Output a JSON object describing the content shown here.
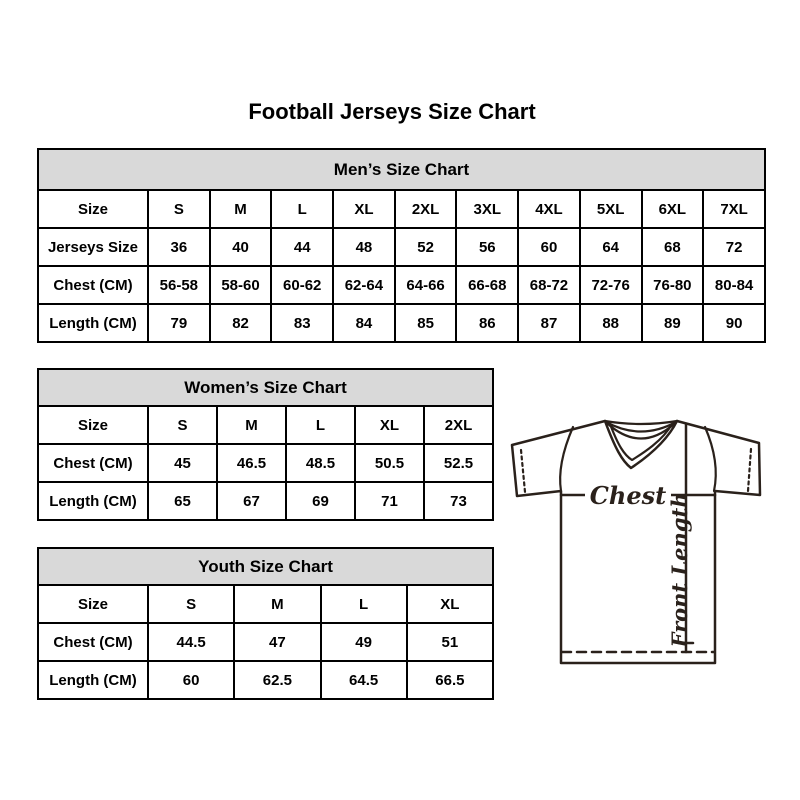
{
  "title": "Football Jerseys Size Chart",
  "tables": {
    "men": {
      "header": "Men’s Size Chart",
      "rows": [
        {
          "label": "Size",
          "values": [
            "S",
            "M",
            "L",
            "XL",
            "2XL",
            "3XL",
            "4XL",
            "5XL",
            "6XL",
            "7XL"
          ]
        },
        {
          "label": "Jerseys Size",
          "values": [
            "36",
            "40",
            "44",
            "48",
            "52",
            "56",
            "60",
            "64",
            "68",
            "72"
          ]
        },
        {
          "label": "Chest (CM)",
          "values": [
            "56-58",
            "58-60",
            "60-62",
            "62-64",
            "64-66",
            "66-68",
            "68-72",
            "72-76",
            "76-80",
            "80-84"
          ]
        },
        {
          "label": "Length (CM)",
          "values": [
            "79",
            "82",
            "83",
            "84",
            "85",
            "86",
            "87",
            "88",
            "89",
            "90"
          ]
        }
      ]
    },
    "women": {
      "header": "Women’s Size Chart",
      "rows": [
        {
          "label": "Size",
          "values": [
            "S",
            "M",
            "L",
            "XL",
            "2XL"
          ]
        },
        {
          "label": "Chest (CM)",
          "values": [
            "45",
            "46.5",
            "48.5",
            "50.5",
            "52.5"
          ]
        },
        {
          "label": "Length (CM)",
          "values": [
            "65",
            "67",
            "69",
            "71",
            "73"
          ]
        }
      ]
    },
    "youth": {
      "header": "Youth Size Chart",
      "rows": [
        {
          "label": "Size",
          "values": [
            "S",
            "M",
            "L",
            "XL"
          ]
        },
        {
          "label": "Chest (CM)",
          "values": [
            "44.5",
            "47",
            "49",
            "51"
          ]
        },
        {
          "label": "Length (CM)",
          "values": [
            "60",
            "62.5",
            "64.5",
            "66.5"
          ]
        }
      ]
    }
  },
  "diagram": {
    "chest_label": "Chest",
    "front_length_label": "Front Length"
  },
  "colors": {
    "table_header_bg": "#d9d9d9",
    "table_border": "#000000",
    "diagram_line": "#2a211b"
  }
}
